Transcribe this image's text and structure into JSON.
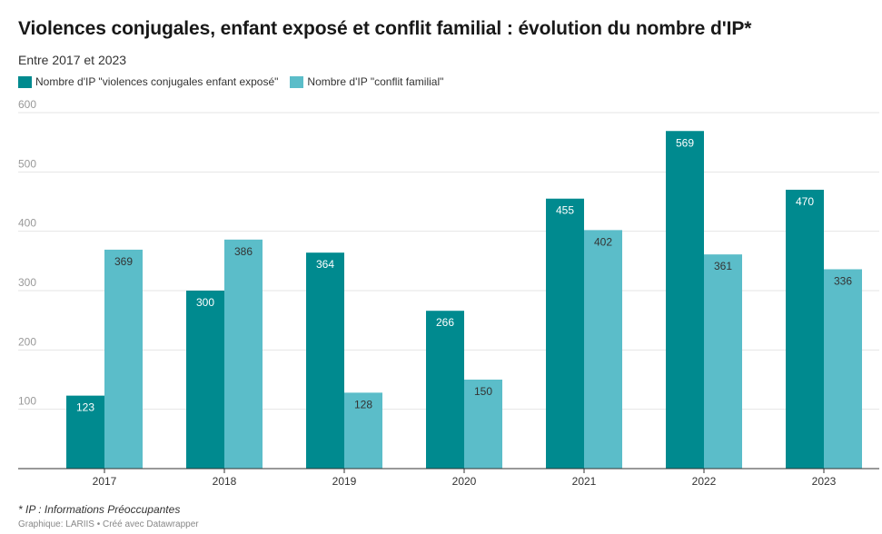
{
  "chart_data": {
    "type": "bar",
    "title": "Violences conjugales, enfant exposé et conflit familial : évolution du nombre d'IP*",
    "subtitle": "Entre 2017 et 2023",
    "categories": [
      "2017",
      "2018",
      "2019",
      "2020",
      "2021",
      "2022",
      "2023"
    ],
    "series": [
      {
        "name": "Nombre d'IP \"violences conjugales enfant exposé\"",
        "color": "#008a8f",
        "values": [
          123,
          300,
          364,
          266,
          455,
          569,
          470
        ]
      },
      {
        "name": "Nombre d'IP \"conflit familial\"",
        "color": "#5bbdc9",
        "values": [
          369,
          386,
          128,
          150,
          402,
          361,
          336
        ]
      }
    ],
    "yticks": [
      "100",
      "200",
      "300",
      "400",
      "500",
      "600"
    ],
    "ylim": [
      0,
      600
    ],
    "grid": true,
    "legend_position": "top-left"
  },
  "footer": {
    "note": "* IP : Informations Préoccupantes",
    "source": "Graphique: LARIIS • Créé avec Datawrapper"
  }
}
